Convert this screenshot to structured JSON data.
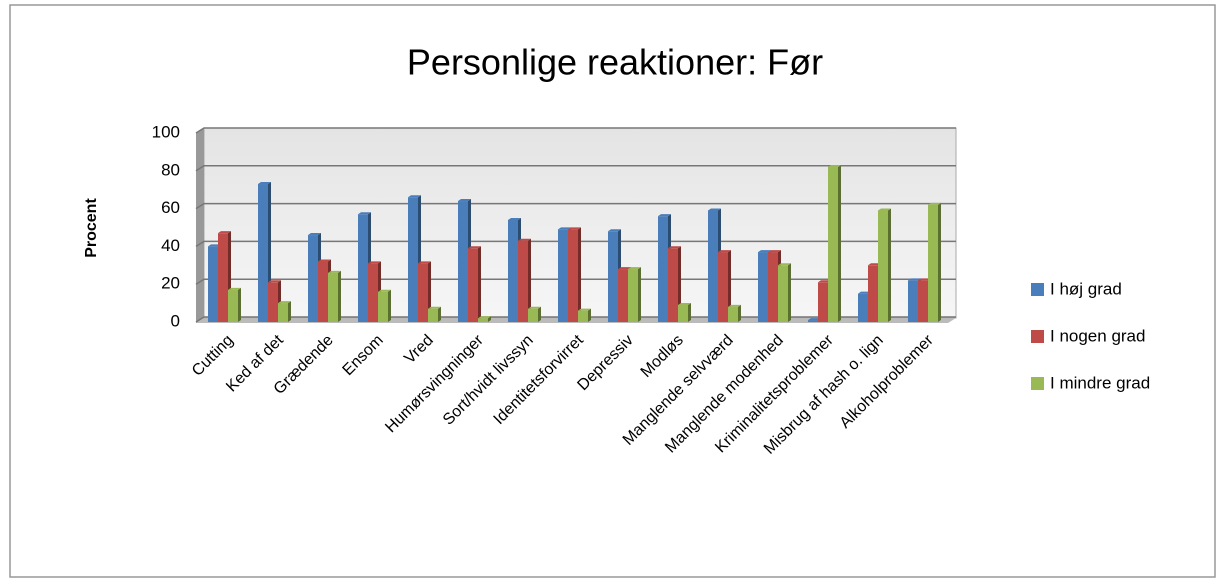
{
  "chart_data": {
    "type": "bar",
    "title": "Personlige reaktioner: Før",
    "y_label": "Procent",
    "categories": [
      "Cutting",
      "Ked af det",
      "Grædende",
      "Ensom",
      "Vred",
      "Humørsvingninger",
      "Sort/hvidt livssyn",
      "Identitetsforvirret",
      "Depressiv",
      "Modløs",
      "Manglende selvværd",
      "Manglende modenhed",
      "Kriminalitetsproblemer",
      "Misbrug af hash o. lign",
      "Alkoholproblemer"
    ],
    "series": [
      {
        "name": "I høj grad",
        "color": "#4a7ebb",
        "values": [
          40,
          73,
          46,
          57,
          66,
          64,
          54,
          49,
          48,
          56,
          59,
          37,
          1,
          15,
          22
        ]
      },
      {
        "name": "I nogen grad",
        "color": "#be4b48",
        "values": [
          47,
          21,
          32,
          31,
          31,
          39,
          43,
          49,
          28,
          39,
          37,
          37,
          21,
          30,
          22
        ]
      },
      {
        "name": "I mindre grad",
        "color": "#98b954",
        "values": [
          17,
          10,
          26,
          16,
          7,
          2,
          7,
          6,
          28,
          9,
          8,
          30,
          82,
          59,
          62
        ]
      }
    ],
    "ylim": [
      0,
      100
    ],
    "yticks": [
      0,
      20,
      40,
      60,
      80,
      100
    ],
    "grid": true,
    "legend": "right"
  }
}
